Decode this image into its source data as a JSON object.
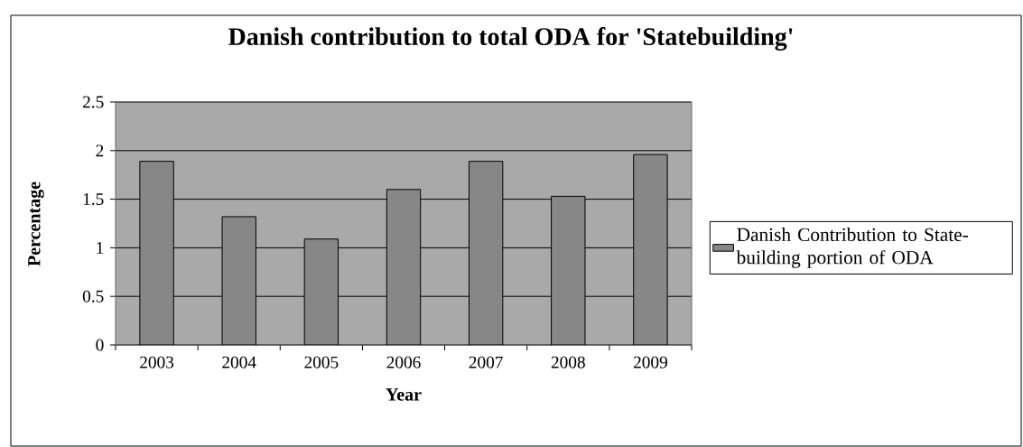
{
  "chart_data": {
    "type": "bar",
    "title": "Danish contribution to total ODA for 'Statebuilding'",
    "xlabel": "Year",
    "ylabel": "Percentage",
    "categories": [
      "2003",
      "2004",
      "2005",
      "2006",
      "2007",
      "2008",
      "2009"
    ],
    "series": [
      {
        "name": "Danish Contribution to State-building portion of ODA",
        "color": "#878787",
        "values": [
          1.89,
          1.32,
          1.09,
          1.6,
          1.89,
          1.53,
          1.96
        ]
      }
    ],
    "ylim": [
      0,
      2.5
    ],
    "yticks": [
      0,
      0.5,
      1,
      1.5,
      2,
      2.5
    ],
    "grid": "y",
    "legend": "right"
  }
}
